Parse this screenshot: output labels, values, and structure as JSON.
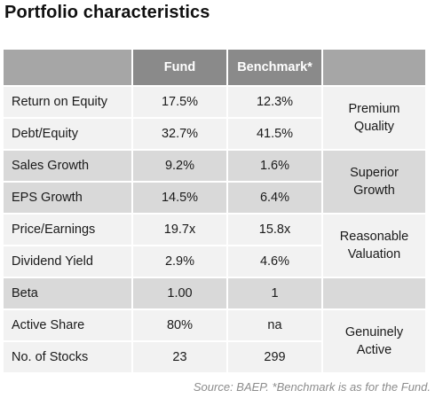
{
  "title": "Portfolio characteristics",
  "table": {
    "headers": {
      "metric": "",
      "fund": "Fund",
      "benchmark": "Benchmark*",
      "quality": ""
    },
    "rows": [
      {
        "metric": "Return on Equity",
        "fund": "17.5%",
        "benchmark": "12.3%"
      },
      {
        "metric": "Debt/Equity",
        "fund": "32.7%",
        "benchmark": "41.5%"
      },
      {
        "metric": "Sales Growth",
        "fund": "9.2%",
        "benchmark": "1.6%"
      },
      {
        "metric": "EPS Growth",
        "fund": "14.5%",
        "benchmark": "6.4%"
      },
      {
        "metric": "Price/Earnings",
        "fund": "19.7x",
        "benchmark": "15.8x"
      },
      {
        "metric": "Dividend Yield",
        "fund": "2.9%",
        "benchmark": "4.6%"
      },
      {
        "metric": "Beta",
        "fund": "1.00",
        "benchmark": "1"
      },
      {
        "metric": "Active Share",
        "fund": "80%",
        "benchmark": "na"
      },
      {
        "metric": "No. of Stocks",
        "fund": "23",
        "benchmark": "299"
      }
    ],
    "groups": [
      {
        "line1": "Premium",
        "line2": "Quality"
      },
      {
        "line1": "Superior",
        "line2": "Growth"
      },
      {
        "line1": "Reasonable",
        "line2": "Valuation"
      },
      {
        "line1": "",
        "line2": ""
      },
      {
        "line1": "Genuinely",
        "line2": "Active"
      }
    ]
  },
  "source": "Source: BAEP. *Benchmark is as for the Fund.",
  "colors": {
    "header_bg": "#8a8a8a",
    "row_light": "#f2f2f2",
    "row_dark": "#d9d9d9",
    "source_text": "#8c8c8c"
  }
}
